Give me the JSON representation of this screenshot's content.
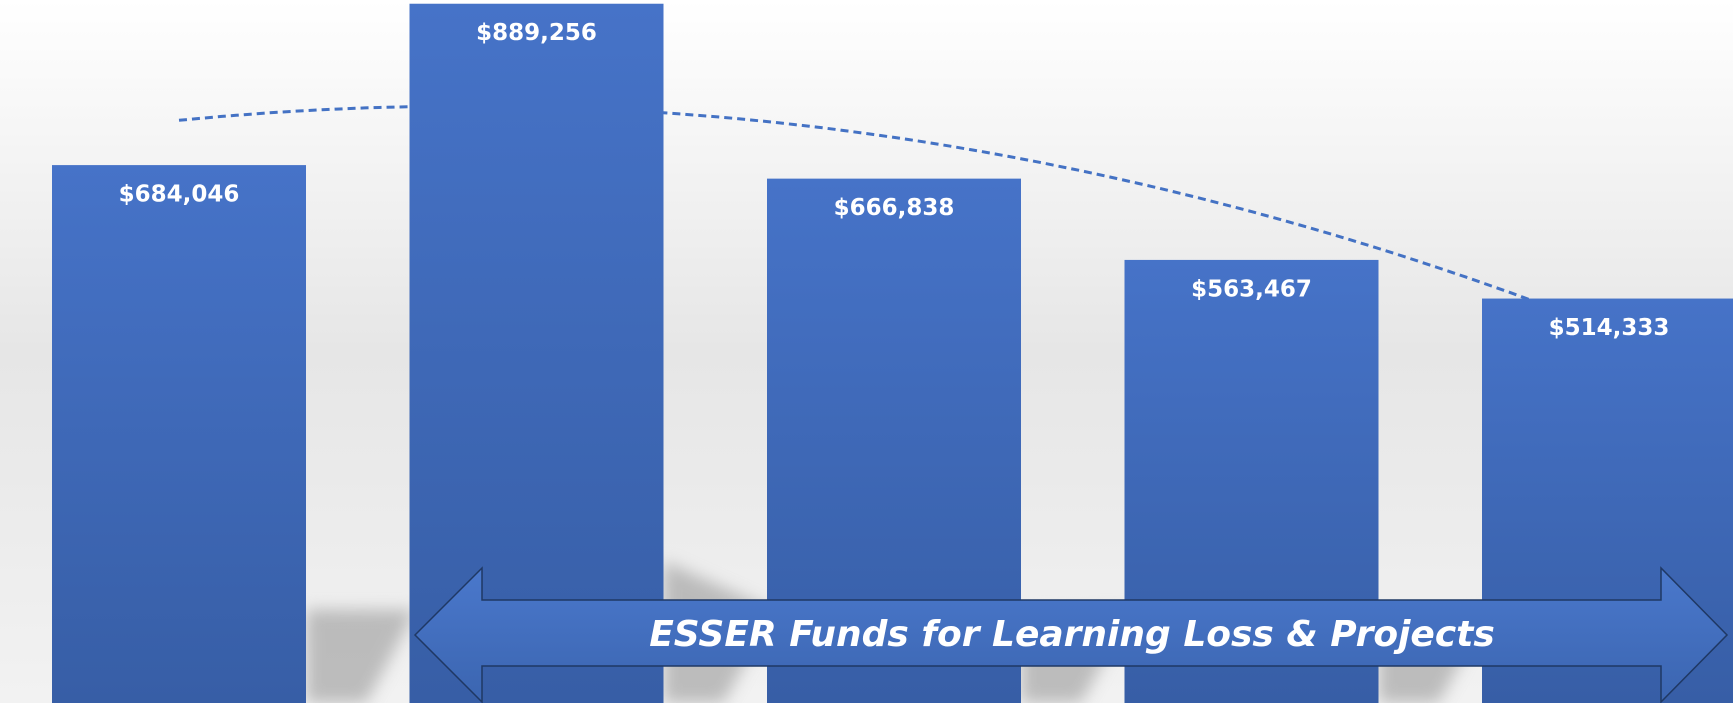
{
  "chart_data": {
    "type": "bar",
    "categories": [
      null,
      null,
      null,
      null,
      null
    ],
    "values": [
      684046,
      889256,
      666838,
      563467,
      514333
    ],
    "value_labels": [
      "$684,046",
      "$889,256",
      "$666,838",
      "$563,467",
      "$514,333"
    ],
    "color": "#4472c4",
    "ylim": [
      0,
      894000
    ],
    "grid": false,
    "trendline": {
      "type": "polynomial",
      "order": 2,
      "color": "#4472c4",
      "dash": true
    },
    "annotation": "ESSER Funds for Learning Loss & Projects"
  }
}
